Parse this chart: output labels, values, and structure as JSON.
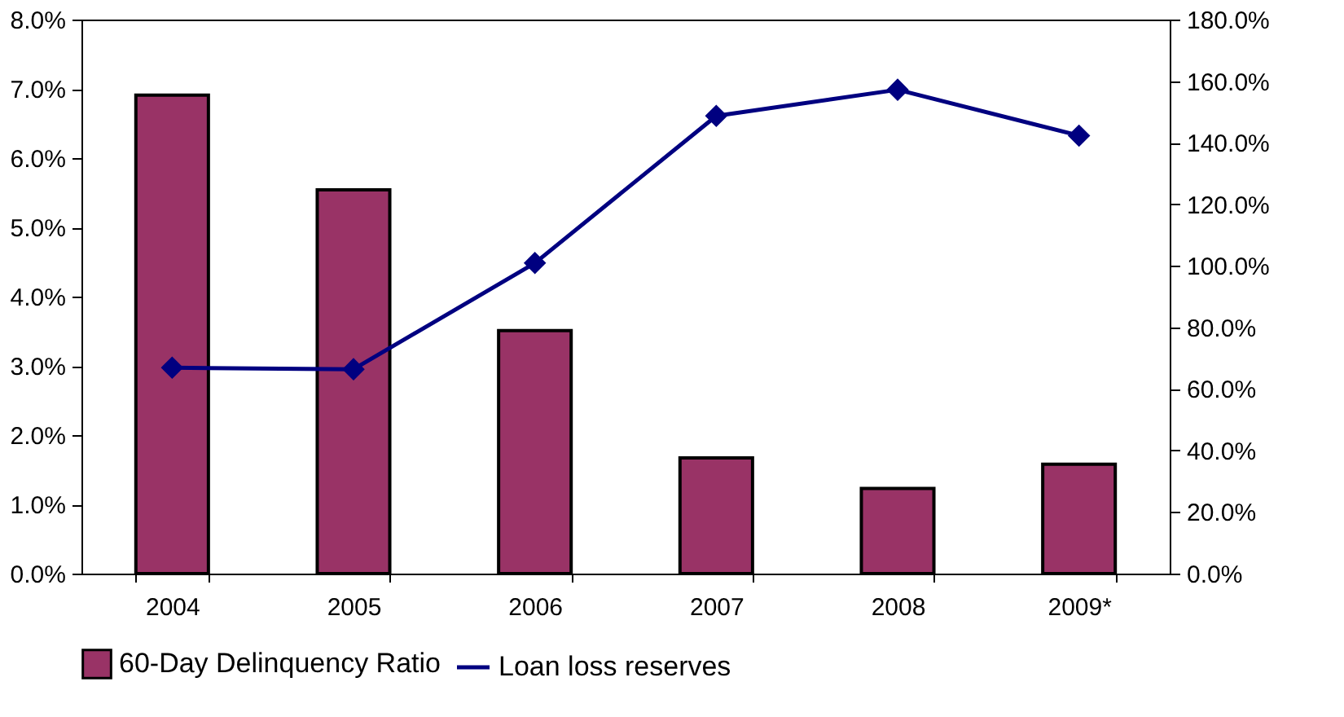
{
  "chart_data": {
    "type": "bar",
    "categories": [
      "2004",
      "2005",
      "2006",
      "2007",
      "2008",
      "2009*"
    ],
    "series": [
      {
        "name": "60-Day Delinquency Ratio",
        "color": "#993366",
        "values": [
          6.91,
          5.54,
          3.51,
          1.67,
          1.23,
          1.58
        ]
      },
      {
        "name": "Loan loss reserves",
        "type": "line",
        "axis": "y2",
        "color": "#000080",
        "marker": "diamond",
        "values": [
          66.9,
          66.4,
          100.9,
          148.7,
          157.2,
          142.3
        ]
      }
    ],
    "ylim": [
      0,
      8
    ],
    "yticks": [
      {
        "value": 0,
        "label": "0.0%"
      },
      {
        "value": 1,
        "label": "1.0%"
      },
      {
        "value": 2,
        "label": "2.0%"
      },
      {
        "value": 3,
        "label": "3.0%"
      },
      {
        "value": 4,
        "label": "4.0%"
      },
      {
        "value": 5,
        "label": "5.0%"
      },
      {
        "value": 6,
        "label": "6.0%"
      },
      {
        "value": 7,
        "label": "7.0%"
      },
      {
        "value": 8,
        "label": "8.0%"
      }
    ],
    "y2lim": [
      0,
      180
    ],
    "y2ticks": [
      {
        "value": 0,
        "label": "0.0%"
      },
      {
        "value": 20,
        "label": "20.0%"
      },
      {
        "value": 40,
        "label": "40.0%"
      },
      {
        "value": 60,
        "label": "60.0%"
      },
      {
        "value": 80,
        "label": "80.0%"
      },
      {
        "value": 100,
        "label": "100.0%"
      },
      {
        "value": 120,
        "label": "120.0%"
      },
      {
        "value": 140,
        "label": "140.0%"
      },
      {
        "value": 160,
        "label": "160.0%"
      },
      {
        "value": 180,
        "label": "180.0%"
      }
    ],
    "grid": false,
    "legend": "bottom"
  }
}
